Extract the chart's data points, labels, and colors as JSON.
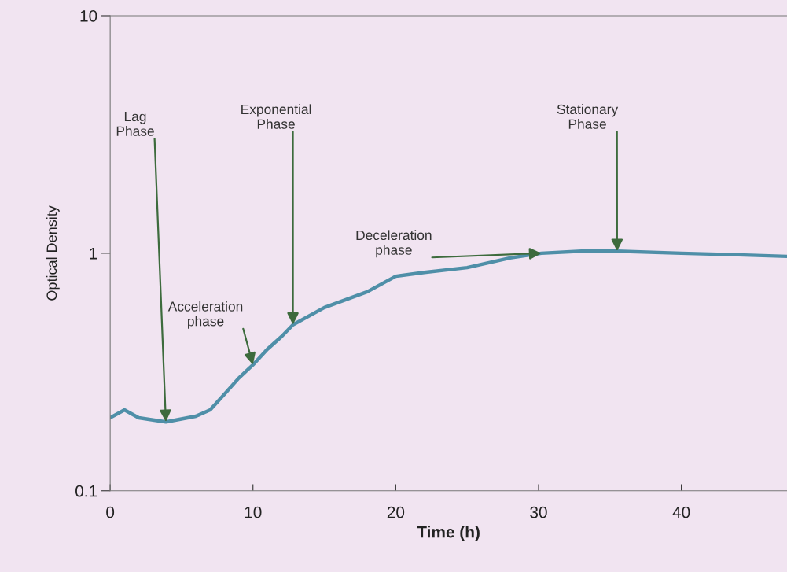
{
  "chart_data": {
    "type": "line",
    "xlabel": "Time (h)",
    "ylabel": "Optical Density",
    "log": "y",
    "x": [
      0,
      1,
      2,
      3.9,
      6,
      7,
      8,
      9,
      10,
      11,
      12,
      12.8,
      15,
      18,
      20,
      22,
      25,
      28,
      30.2,
      33,
      35.5,
      40,
      44,
      47.4
    ],
    "series": [
      {
        "color": "#4f8fa8",
        "values": [
          0.203,
          0.219,
          0.203,
          0.195,
          0.206,
          0.219,
          0.255,
          0.298,
          0.339,
          0.394,
          0.446,
          0.5,
          0.591,
          0.688,
          0.8,
          0.83,
          0.87,
          0.955,
          1.0,
          1.02,
          1.02,
          1.0,
          0.985,
          0.97
        ]
      }
    ],
    "xlim": [
      0,
      47.4
    ],
    "xticks": [
      0,
      10,
      20,
      30,
      40
    ],
    "ylim": [
      0.1,
      10
    ],
    "yticks": [
      0.1,
      1,
      10
    ],
    "grid": false,
    "legend": false,
    "marker": "none",
    "line_style": "solid",
    "annotations": [
      {
        "text": "Lag\nPhase",
        "x": 3.9,
        "y": 0.195
      },
      {
        "text": "Acceleration\nphase",
        "x": 10,
        "y": 0.339
      },
      {
        "text": "Exponential\nPhase",
        "x": 12.8,
        "y": 0.5
      },
      {
        "text": "Deceleration\nphase",
        "x": 30.2,
        "y": 1.0
      },
      {
        "text": "Stationary\nPhase",
        "x": 35.5,
        "y": 1.02
      }
    ]
  }
}
